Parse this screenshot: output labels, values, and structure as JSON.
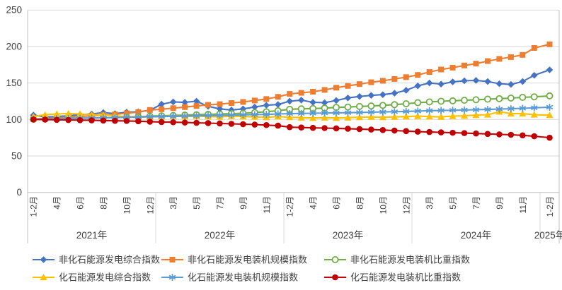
{
  "chart_data": {
    "type": "line",
    "title": "",
    "y_axis": {
      "min": 0,
      "max": 250,
      "ticks": [
        0,
        50,
        100,
        150,
        200,
        250
      ]
    },
    "x_axis": {
      "month_labels_full_year": [
        "1-2月",
        "3月",
        "4月",
        "5月",
        "6月",
        "7月",
        "8月",
        "9月",
        "10月",
        "11月",
        "12月"
      ],
      "years": [
        {
          "label": "2021年",
          "months": 11
        },
        {
          "label": "2022年",
          "months": 11
        },
        {
          "label": "2023年",
          "months": 11
        },
        {
          "label": "2024年",
          "months": 11
        },
        {
          "label": "2025年",
          "months": 1
        }
      ],
      "label_every": 2
    },
    "grid": true,
    "legend": {
      "position": "bottom",
      "rows": 2,
      "columns": 3
    },
    "colors": {
      "gridline": "#D9D9D9",
      "axis": "#BFBFBF",
      "text": "#404040",
      "background": "#FFFFFF"
    },
    "series": [
      {
        "id": "non-fossil-generation-composite-index",
        "name": "非化石能源发电综合指数",
        "color": "#4472C4",
        "marker": "diamond",
        "values": [
          106,
          103.5,
          104,
          105,
          106.5,
          107.5,
          109.5,
          108,
          110,
          110.5,
          112.5,
          121,
          124,
          123.5,
          125,
          118,
          114.5,
          113,
          114.5,
          117,
          119.5,
          120.5,
          125,
          126.5,
          123.5,
          123,
          126,
          129.5,
          131.5,
          133,
          134,
          136,
          140,
          146,
          150,
          148.5,
          151.5,
          153,
          153.5,
          152,
          149,
          148,
          152,
          160.5,
          168
        ]
      },
      {
        "id": "non-fossil-installed-capacity-scale-index",
        "name": "非化石能源发电装机规模指数",
        "color": "#ED7D31",
        "marker": "square",
        "values": [
          100.5,
          101.5,
          102,
          103,
          104,
          105,
          106,
          107,
          108.5,
          110,
          113,
          114,
          115.5,
          117,
          118.5,
          120,
          121,
          122.5,
          124,
          126,
          128,
          131,
          135,
          136.5,
          138,
          140.5,
          143.5,
          146,
          148.5,
          151,
          153,
          155.5,
          158,
          161,
          165,
          168.5,
          171,
          174,
          176.5,
          180,
          183,
          185.5,
          188.5,
          198,
          203
        ]
      },
      {
        "id": "non-fossil-installed-capacity-share-index",
        "name": "非化石能源发电装机比重指数",
        "color": "#70AD47",
        "marker": "circle-open",
        "values": [
          100.2,
          100.6,
          101,
          101.3,
          101.7,
          102,
          102.4,
          102.8,
          103.2,
          103.6,
          104.5,
          105,
          105.5,
          106,
          106.5,
          107,
          107.5,
          108,
          108.5,
          109.5,
          110.5,
          112,
          114,
          114.5,
          115,
          115.5,
          116.5,
          117,
          117.8,
          118.5,
          119.3,
          120.3,
          121.5,
          123,
          124,
          125,
          125.5,
          126.3,
          127,
          127.8,
          128.5,
          129.3,
          130.3,
          131,
          132.3
        ]
      },
      {
        "id": "fossil-generation-composite-index",
        "name": "化石能源发电综合指数",
        "color": "#FFC000",
        "marker": "triangle",
        "values": [
          104,
          106.5,
          107.5,
          108,
          107.5,
          106.5,
          106,
          105,
          104,
          103.5,
          103.5,
          104,
          104.5,
          104,
          104.5,
          104,
          103.5,
          104.5,
          104,
          103.5,
          103,
          104,
          103,
          102.5,
          102,
          102.5,
          102,
          102.5,
          103,
          103.5,
          103,
          103.5,
          104,
          104.5,
          104,
          103.5,
          104.5,
          105,
          106,
          106.5,
          110.5,
          108,
          108,
          106.5,
          106
        ]
      },
      {
        "id": "fossil-installed-capacity-scale-index",
        "name": "化石能源发电装机规模指数",
        "color": "#5B9BD5",
        "marker": "asterisk",
        "values": [
          100.3,
          100.6,
          101,
          101.3,
          101.6,
          102,
          102.3,
          102.6,
          103,
          103.3,
          103.8,
          104,
          104.3,
          104.6,
          105,
          105.3,
          105.6,
          106,
          106.3,
          106.6,
          107,
          107.5,
          108,
          108.2,
          108.5,
          108.8,
          109,
          109.3,
          109.6,
          110,
          110.3,
          110.6,
          111,
          111.5,
          112,
          112.3,
          112.6,
          113,
          113.3,
          113.7,
          114.2,
          114.7,
          115.3,
          116,
          116.8
        ]
      },
      {
        "id": "fossil-installed-capacity-share-index",
        "name": "化石能源发电装机比重指数",
        "color": "#C00000",
        "marker": "circle",
        "values": [
          100,
          99.8,
          99.5,
          99.3,
          99,
          98.8,
          98.5,
          98.2,
          98,
          97.6,
          97,
          96.5,
          96.2,
          95.8,
          95.4,
          95,
          94.5,
          94,
          93.5,
          93,
          92.3,
          91.5,
          89.5,
          89,
          88.5,
          88.2,
          87.8,
          87.3,
          86.8,
          86.2,
          85.5,
          84.8,
          84,
          83.3,
          82.8,
          82.3,
          81.8,
          81.3,
          80.8,
          80.2,
          79.6,
          79,
          78.2,
          77,
          75
        ]
      }
    ]
  }
}
